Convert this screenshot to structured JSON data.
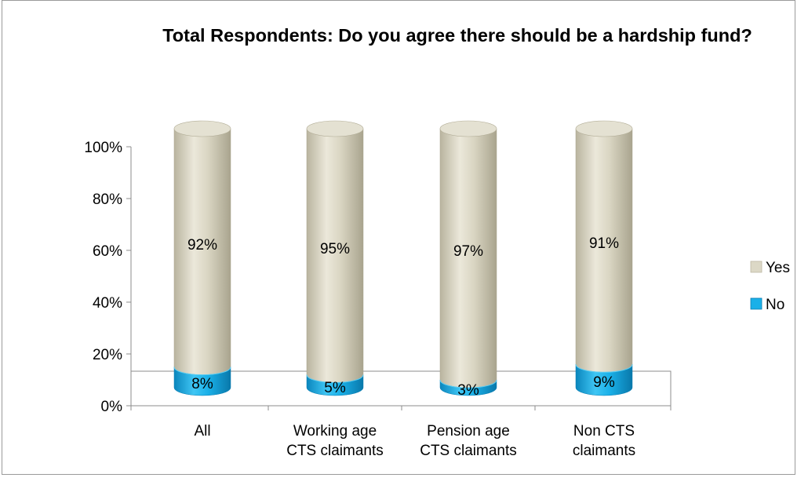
{
  "chart_data": {
    "type": "bar",
    "stacked": true,
    "style": "3d-cylinder",
    "title": "Total Respondents:  Do you agree there should be a hardship fund?",
    "categories": [
      "All",
      "Working age CTS claimants",
      "Pension age CTS claimants",
      "Non CTS claimants"
    ],
    "category_lines": [
      [
        "All"
      ],
      [
        "Working age",
        "CTS claimants"
      ],
      [
        "Pension age",
        "CTS claimants"
      ],
      [
        "Non CTS",
        "claimants"
      ]
    ],
    "series": [
      {
        "name": "No",
        "values": [
          8,
          5,
          3,
          9
        ],
        "labels": [
          "8%",
          "5%",
          "3%",
          "9%"
        ],
        "color": "#1ab0e8"
      },
      {
        "name": "Yes",
        "values": [
          92,
          95,
          97,
          91
        ],
        "labels": [
          "92%",
          "95%",
          "97%",
          "91%"
        ],
        "color": "#dcd8c6"
      }
    ],
    "y_ticks": [
      "0%",
      "20%",
      "40%",
      "60%",
      "80%",
      "100%"
    ],
    "ylim": [
      0,
      100
    ],
    "legend": {
      "position": "right",
      "entries": [
        "Yes",
        "No"
      ]
    },
    "grid": false
  }
}
